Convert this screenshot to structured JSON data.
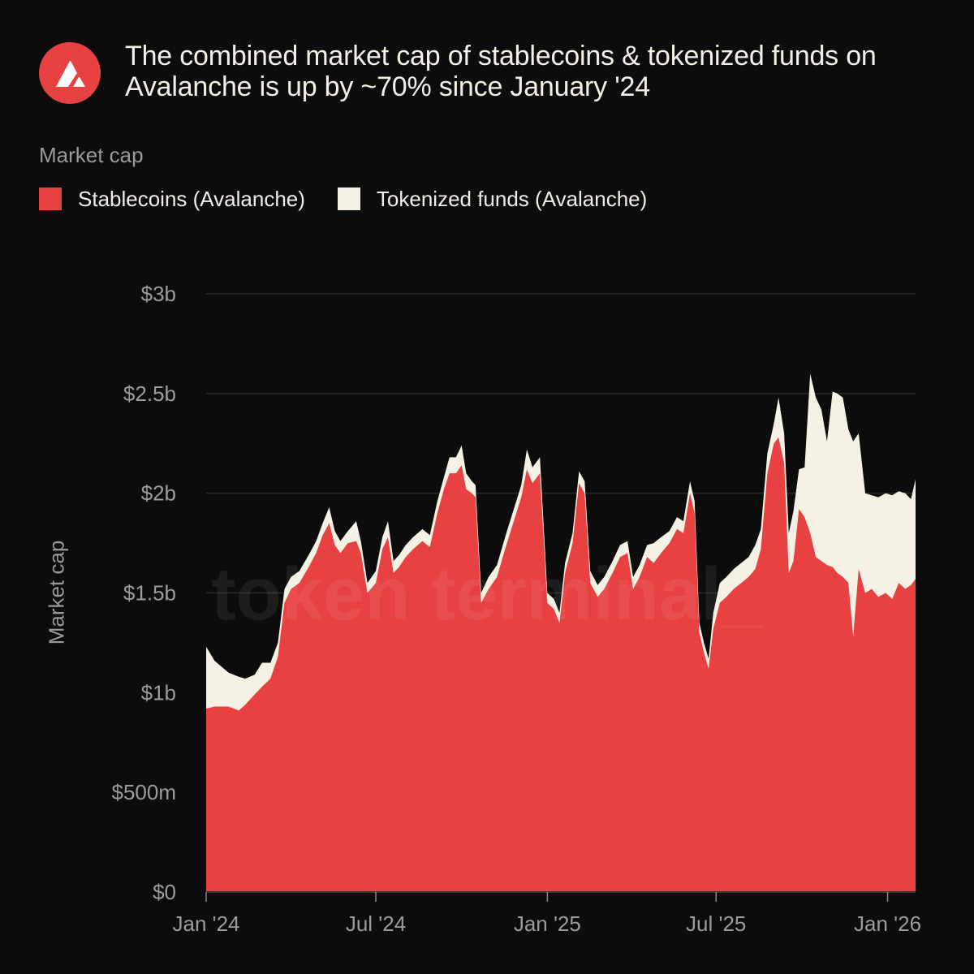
{
  "title": "The combined market cap of stablecoins & tokenized funds on Avalanche is up by ~70% since January '24",
  "legend_heading": "Market cap",
  "watermark": "token terminal_",
  "colors": {
    "background": "#0c0c0c",
    "stablecoins": "#e84142",
    "tokenized_funds": "#f5f1e4",
    "grid": "#2a2a2a",
    "logo": "#e84142"
  },
  "chart_data": {
    "type": "area",
    "stacked": true,
    "title": "The combined market cap of stablecoins & tokenized funds on Avalanche is up by ~70% since January '24",
    "xlabel": "",
    "ylabel": "Market cap",
    "x_range": [
      "2024-01-01",
      "2026-01-31"
    ],
    "ylim": [
      0,
      3000000000
    ],
    "y_ticks": [
      {
        "value": 0,
        "label": "$0"
      },
      {
        "value": 500000000,
        "label": "$500m"
      },
      {
        "value": 1000000000,
        "label": "$1b"
      },
      {
        "value": 1500000000,
        "label": "$1.5b"
      },
      {
        "value": 2000000000,
        "label": "$2b"
      },
      {
        "value": 2500000000,
        "label": "$2.5b"
      },
      {
        "value": 3000000000,
        "label": "$3b"
      }
    ],
    "x_ticks": [
      {
        "date": "2024-01-01",
        "label": "Jan '24"
      },
      {
        "date": "2024-07-01",
        "label": "Jul '24"
      },
      {
        "date": "2025-01-01",
        "label": "Jan '25"
      },
      {
        "date": "2025-07-01",
        "label": "Jul '25"
      },
      {
        "date": "2026-01-01",
        "label": "Jan '26"
      }
    ],
    "grid": "horizontal",
    "legend_position": "top-left",
    "series": [
      {
        "name": "Stablecoins (Avalanche)",
        "color": "#e84142",
        "points": [
          [
            "2024-01-01",
            0.92
          ],
          [
            "2024-01-10",
            0.93
          ],
          [
            "2024-01-25",
            0.93
          ],
          [
            "2024-02-05",
            0.91
          ],
          [
            "2024-02-12",
            0.94
          ],
          [
            "2024-02-22",
            0.99
          ],
          [
            "2024-03-01",
            1.03
          ],
          [
            "2024-03-10",
            1.07
          ],
          [
            "2024-03-18",
            1.18
          ],
          [
            "2024-03-25",
            1.45
          ],
          [
            "2024-04-01",
            1.52
          ],
          [
            "2024-04-10",
            1.55
          ],
          [
            "2024-04-20",
            1.63
          ],
          [
            "2024-04-28",
            1.7
          ],
          [
            "2024-05-05",
            1.79
          ],
          [
            "2024-05-12",
            1.85
          ],
          [
            "2024-05-18",
            1.74
          ],
          [
            "2024-05-24",
            1.7
          ],
          [
            "2024-06-01",
            1.75
          ],
          [
            "2024-06-10",
            1.76
          ],
          [
            "2024-06-15",
            1.7
          ],
          [
            "2024-06-22",
            1.5
          ],
          [
            "2024-07-01",
            1.55
          ],
          [
            "2024-07-08",
            1.72
          ],
          [
            "2024-07-14",
            1.78
          ],
          [
            "2024-07-20",
            1.6
          ],
          [
            "2024-07-26",
            1.63
          ],
          [
            "2024-08-02",
            1.68
          ],
          [
            "2024-08-10",
            1.72
          ],
          [
            "2024-08-20",
            1.76
          ],
          [
            "2024-08-28",
            1.73
          ],
          [
            "2024-09-05",
            1.9
          ],
          [
            "2024-09-12",
            2.02
          ],
          [
            "2024-09-18",
            2.1
          ],
          [
            "2024-09-25",
            2.1
          ],
          [
            "2024-10-01",
            2.14
          ],
          [
            "2024-10-06",
            2.02
          ],
          [
            "2024-10-12",
            2.0
          ],
          [
            "2024-10-16",
            1.98
          ],
          [
            "2024-10-22",
            1.45
          ],
          [
            "2024-10-30",
            1.52
          ],
          [
            "2024-11-08",
            1.58
          ],
          [
            "2024-11-18",
            1.74
          ],
          [
            "2024-11-26",
            1.86
          ],
          [
            "2024-12-04",
            1.98
          ],
          [
            "2024-12-10",
            2.12
          ],
          [
            "2024-12-16",
            2.05
          ],
          [
            "2024-12-24",
            2.1
          ],
          [
            "2025-01-01",
            1.45
          ],
          [
            "2025-01-08",
            1.42
          ],
          [
            "2025-01-14",
            1.35
          ],
          [
            "2025-01-20",
            1.6
          ],
          [
            "2025-01-28",
            1.75
          ],
          [
            "2025-02-04",
            2.05
          ],
          [
            "2025-02-10",
            2.0
          ],
          [
            "2025-02-16",
            1.55
          ],
          [
            "2025-02-24",
            1.48
          ],
          [
            "2025-03-03",
            1.52
          ],
          [
            "2025-03-12",
            1.6
          ],
          [
            "2025-03-20",
            1.68
          ],
          [
            "2025-03-28",
            1.7
          ],
          [
            "2025-04-03",
            1.52
          ],
          [
            "2025-04-10",
            1.58
          ],
          [
            "2025-04-18",
            1.68
          ],
          [
            "2025-04-25",
            1.65
          ],
          [
            "2025-05-03",
            1.7
          ],
          [
            "2025-05-12",
            1.75
          ],
          [
            "2025-05-20",
            1.82
          ],
          [
            "2025-05-27",
            1.8
          ],
          [
            "2025-06-03",
            2.0
          ],
          [
            "2025-06-08",
            1.9
          ],
          [
            "2025-06-13",
            1.3
          ],
          [
            "2025-06-18",
            1.2
          ],
          [
            "2025-06-23",
            1.12
          ],
          [
            "2025-06-28",
            1.32
          ],
          [
            "2025-07-05",
            1.45
          ],
          [
            "2025-07-12",
            1.48
          ],
          [
            "2025-07-20",
            1.52
          ],
          [
            "2025-07-28",
            1.55
          ],
          [
            "2025-08-05",
            1.58
          ],
          [
            "2025-08-12",
            1.62
          ],
          [
            "2025-08-18",
            1.72
          ],
          [
            "2025-08-25",
            2.1
          ],
          [
            "2025-09-01",
            2.25
          ],
          [
            "2025-09-06",
            2.28
          ],
          [
            "2025-09-12",
            2.15
          ],
          [
            "2025-09-17",
            1.6
          ],
          [
            "2025-09-22",
            1.66
          ],
          [
            "2025-09-28",
            1.92
          ],
          [
            "2025-10-04",
            1.88
          ],
          [
            "2025-10-10",
            1.8
          ],
          [
            "2025-10-16",
            1.68
          ],
          [
            "2025-10-22",
            1.66
          ],
          [
            "2025-10-28",
            1.64
          ],
          [
            "2025-11-03",
            1.63
          ],
          [
            "2025-11-08",
            1.6
          ],
          [
            "2025-11-14",
            1.58
          ],
          [
            "2025-11-20",
            1.55
          ],
          [
            "2025-11-25",
            1.28
          ],
          [
            "2025-12-01",
            1.62
          ],
          [
            "2025-12-08",
            1.5
          ],
          [
            "2025-12-15",
            1.52
          ],
          [
            "2025-12-22",
            1.48
          ],
          [
            "2025-12-30",
            1.5
          ],
          [
            "2026-01-06",
            1.47
          ],
          [
            "2026-01-13",
            1.55
          ],
          [
            "2026-01-20",
            1.52
          ],
          [
            "2026-01-26",
            1.54
          ],
          [
            "2026-01-31",
            1.57
          ]
        ]
      },
      {
        "name": "Tokenized funds (Avalanche)",
        "color": "#f5f1e4",
        "points": [
          [
            "2024-01-01",
            0.31
          ],
          [
            "2024-01-10",
            0.23
          ],
          [
            "2024-01-25",
            0.17
          ],
          [
            "2024-02-05",
            0.17
          ],
          [
            "2024-02-12",
            0.13
          ],
          [
            "2024-02-22",
            0.1
          ],
          [
            "2024-03-01",
            0.12
          ],
          [
            "2024-03-10",
            0.08
          ],
          [
            "2024-03-18",
            0.07
          ],
          [
            "2024-03-25",
            0.07
          ],
          [
            "2024-04-01",
            0.06
          ],
          [
            "2024-04-10",
            0.06
          ],
          [
            "2024-04-20",
            0.06
          ],
          [
            "2024-04-28",
            0.06
          ],
          [
            "2024-05-05",
            0.06
          ],
          [
            "2024-05-12",
            0.08
          ],
          [
            "2024-05-18",
            0.07
          ],
          [
            "2024-05-24",
            0.06
          ],
          [
            "2024-06-01",
            0.06
          ],
          [
            "2024-06-10",
            0.1
          ],
          [
            "2024-06-15",
            0.06
          ],
          [
            "2024-06-22",
            0.05
          ],
          [
            "2024-07-01",
            0.06
          ],
          [
            "2024-07-08",
            0.06
          ],
          [
            "2024-07-14",
            0.08
          ],
          [
            "2024-07-20",
            0.06
          ],
          [
            "2024-07-26",
            0.06
          ],
          [
            "2024-08-02",
            0.06
          ],
          [
            "2024-08-10",
            0.06
          ],
          [
            "2024-08-20",
            0.06
          ],
          [
            "2024-08-28",
            0.06
          ],
          [
            "2024-09-05",
            0.06
          ],
          [
            "2024-09-12",
            0.06
          ],
          [
            "2024-09-18",
            0.08
          ],
          [
            "2024-09-25",
            0.08
          ],
          [
            "2024-10-01",
            0.1
          ],
          [
            "2024-10-06",
            0.08
          ],
          [
            "2024-10-12",
            0.06
          ],
          [
            "2024-10-16",
            0.06
          ],
          [
            "2024-10-22",
            0.05
          ],
          [
            "2024-10-30",
            0.06
          ],
          [
            "2024-11-08",
            0.06
          ],
          [
            "2024-11-18",
            0.06
          ],
          [
            "2024-11-26",
            0.06
          ],
          [
            "2024-12-04",
            0.06
          ],
          [
            "2024-12-10",
            0.1
          ],
          [
            "2024-12-16",
            0.08
          ],
          [
            "2024-12-24",
            0.08
          ],
          [
            "2025-01-01",
            0.05
          ],
          [
            "2025-01-08",
            0.05
          ],
          [
            "2025-01-14",
            0.05
          ],
          [
            "2025-01-20",
            0.05
          ],
          [
            "2025-01-28",
            0.05
          ],
          [
            "2025-02-04",
            0.06
          ],
          [
            "2025-02-10",
            0.06
          ],
          [
            "2025-02-16",
            0.06
          ],
          [
            "2025-02-24",
            0.06
          ],
          [
            "2025-03-03",
            0.06
          ],
          [
            "2025-03-12",
            0.06
          ],
          [
            "2025-03-20",
            0.06
          ],
          [
            "2025-03-28",
            0.06
          ],
          [
            "2025-04-03",
            0.06
          ],
          [
            "2025-04-10",
            0.06
          ],
          [
            "2025-04-18",
            0.06
          ],
          [
            "2025-04-25",
            0.1
          ],
          [
            "2025-05-03",
            0.08
          ],
          [
            "2025-05-12",
            0.06
          ],
          [
            "2025-05-20",
            0.06
          ],
          [
            "2025-05-27",
            0.06
          ],
          [
            "2025-06-03",
            0.06
          ],
          [
            "2025-06-08",
            0.06
          ],
          [
            "2025-06-13",
            0.05
          ],
          [
            "2025-06-18",
            0.05
          ],
          [
            "2025-06-23",
            0.05
          ],
          [
            "2025-06-28",
            0.08
          ],
          [
            "2025-07-05",
            0.1
          ],
          [
            "2025-07-12",
            0.1
          ],
          [
            "2025-07-20",
            0.1
          ],
          [
            "2025-07-28",
            0.1
          ],
          [
            "2025-08-05",
            0.1
          ],
          [
            "2025-08-12",
            0.12
          ],
          [
            "2025-08-18",
            0.1
          ],
          [
            "2025-08-25",
            0.1
          ],
          [
            "2025-09-01",
            0.1
          ],
          [
            "2025-09-06",
            0.2
          ],
          [
            "2025-09-12",
            0.15
          ],
          [
            "2025-09-17",
            0.2
          ],
          [
            "2025-09-22",
            0.25
          ],
          [
            "2025-09-28",
            0.2
          ],
          [
            "2025-10-04",
            0.25
          ],
          [
            "2025-10-10",
            0.8
          ],
          [
            "2025-10-16",
            0.8
          ],
          [
            "2025-10-22",
            0.76
          ],
          [
            "2025-10-28",
            0.62
          ],
          [
            "2025-11-03",
            0.88
          ],
          [
            "2025-11-08",
            0.9
          ],
          [
            "2025-11-14",
            0.9
          ],
          [
            "2025-11-20",
            0.77
          ],
          [
            "2025-11-25",
            0.98
          ],
          [
            "2025-12-01",
            0.68
          ],
          [
            "2025-12-08",
            0.5
          ],
          [
            "2025-12-15",
            0.47
          ],
          [
            "2025-12-22",
            0.5
          ],
          [
            "2025-12-30",
            0.5
          ],
          [
            "2026-01-06",
            0.52
          ],
          [
            "2026-01-13",
            0.46
          ],
          [
            "2026-01-20",
            0.48
          ],
          [
            "2026-01-26",
            0.43
          ],
          [
            "2026-01-31",
            0.5
          ]
        ]
      }
    ]
  }
}
